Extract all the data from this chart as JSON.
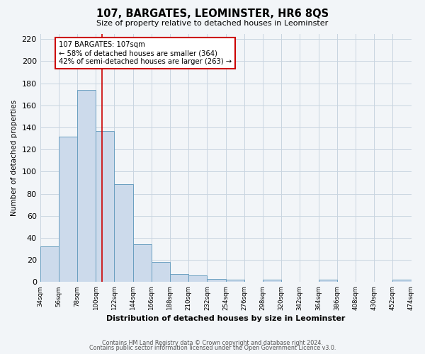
{
  "title": "107, BARGATES, LEOMINSTER, HR6 8QS",
  "subtitle": "Size of property relative to detached houses in Leominster",
  "xlabel": "Distribution of detached houses by size in Leominster",
  "ylabel": "Number of detached properties",
  "bar_values": [
    32,
    132,
    174,
    137,
    89,
    34,
    18,
    7,
    6,
    3,
    2,
    0,
    2,
    0,
    0,
    2,
    0,
    0,
    0,
    2
  ],
  "bin_edges": [
    34,
    56,
    78,
    100,
    122,
    144,
    166,
    188,
    210,
    232,
    254,
    276,
    298,
    320,
    342,
    364,
    386,
    408,
    430,
    452,
    474
  ],
  "tick_labels": [
    "34sqm",
    "56sqm",
    "78sqm",
    "100sqm",
    "122sqm",
    "144sqm",
    "166sqm",
    "188sqm",
    "210sqm",
    "232sqm",
    "254sqm",
    "276sqm",
    "298sqm",
    "320sqm",
    "342sqm",
    "364sqm",
    "386sqm",
    "408sqm",
    "430sqm",
    "452sqm",
    "474sqm"
  ],
  "bar_color": "#ccdaeb",
  "bar_edge_color": "#6a9fc0",
  "bar_edge_width": 0.7,
  "grid_color": "#c8d4e0",
  "bg_color": "#f2f5f8",
  "plot_bg_color": "#f2f5f8",
  "vline_x": 107,
  "vline_color": "#cc0000",
  "annotation_text": "107 BARGATES: 107sqm\n← 58% of detached houses are smaller (364)\n42% of semi-detached houses are larger (263) →",
  "annotation_box_color": "#ffffff",
  "annotation_box_edge_color": "#cc0000",
  "ylim": [
    0,
    225
  ],
  "yticks": [
    0,
    20,
    40,
    60,
    80,
    100,
    120,
    140,
    160,
    180,
    200,
    220
  ],
  "footer1": "Contains HM Land Registry data © Crown copyright and database right 2024.",
  "footer2": "Contains public sector information licensed under the Open Government Licence v3.0."
}
